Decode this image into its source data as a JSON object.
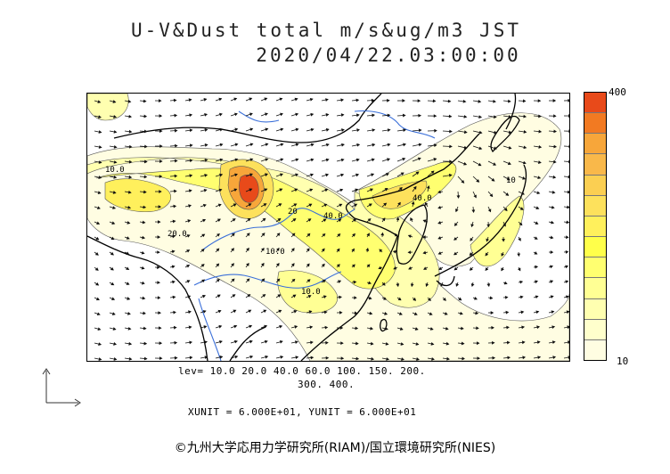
{
  "title": {
    "line1": "U-V&Dust total m/s&ug/m3 JST",
    "line2": "2020/04/22.03:00:00"
  },
  "colorbar": {
    "max_label": "400",
    "min_label": "10",
    "colors_top_to_bottom": [
      "#e84a1a",
      "#f27a22",
      "#f7a63a",
      "#f9b84a",
      "#fbcf52",
      "#fde15c",
      "#fff05c",
      "#ffff4a",
      "#ffff70",
      "#ffff94",
      "#ffffb0",
      "#ffffcc",
      "#fffde2"
    ]
  },
  "levels": {
    "line1": "lev= 10.0 20.0 40.0 60.0 100. 150. 200.",
    "line2": "300. 400."
  },
  "units_text": "XUNIT = 6.000E+01, YUNIT = 6.000E+01",
  "contour_labels": [
    "10.0",
    "40.0",
    "20",
    "40.0",
    "10.0",
    "10.0",
    "20.0",
    "10"
  ],
  "copyright": "©九州大学応用力学研究所(RIAM)/国立環境研究所(NIES)",
  "icons": {
    "axis": "xy-axis-arrows-icon"
  }
}
